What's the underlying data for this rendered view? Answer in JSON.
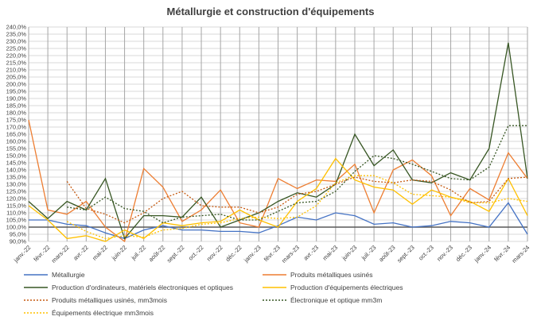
{
  "chart_data": {
    "type": "line",
    "title": "Métallurgie et construction d'équipements",
    "xlabel": "",
    "ylabel": "",
    "ylim": [
      90,
      240
    ],
    "ytick_step": 5,
    "reference_line": 100,
    "grid": true,
    "legend_position": "bottom",
    "categories": [
      "janv.-22",
      "févr.-22",
      "mars-22",
      "avr.-22",
      "mai-22",
      "juin-22",
      "juil.-22",
      "août-22",
      "sept.-22",
      "oct.-22",
      "nov.-22",
      "déc.-22",
      "janv.-23",
      "févr.-23",
      "mars-23",
      "avr.-23",
      "mai-23",
      "juin-23",
      "juil.-23",
      "août-23",
      "sept.-23",
      "oct.-23",
      "nov.-23",
      "déc.-23",
      "janv.-24",
      "févr.-24",
      "mars-24"
    ],
    "series": [
      {
        "name": "Métallurgie",
        "color": "#4472c4",
        "dash": false,
        "values": [
          105,
          105,
          102,
          101,
          96,
          92,
          98,
          101,
          98,
          98,
          97,
          97,
          96,
          101,
          107,
          105,
          110,
          108,
          102,
          103,
          100,
          101,
          104,
          103,
          100,
          117,
          95
        ]
      },
      {
        "name": "Produits métalliques usinés",
        "color": "#ed7d31",
        "dash": false,
        "values": [
          175,
          112,
          109,
          118,
          100,
          90,
          141,
          128,
          104,
          112,
          126,
          103,
          100,
          134,
          127,
          133,
          132,
          144,
          110,
          140,
          147,
          136,
          108,
          127,
          119,
          152,
          134
        ]
      },
      {
        "name": "Production d'ordinateurs, matériels électroniques et optiques",
        "color": "#375623",
        "dash": false,
        "values": [
          118,
          106,
          118,
          112,
          134,
          92,
          108,
          108,
          107,
          121,
          100,
          105,
          110,
          118,
          124,
          121,
          130,
          165,
          143,
          154,
          133,
          131,
          138,
          133,
          155,
          229,
          134
        ]
      },
      {
        "name": "Production d'équipements électriques",
        "color": "#ffc000",
        "dash": false,
        "values": [
          115,
          105,
          92,
          94,
          90,
          98,
          92,
          103,
          101,
          103,
          104,
          112,
          105,
          100,
          118,
          127,
          148,
          133,
          128,
          126,
          116,
          126,
          121,
          118,
          111,
          134,
          108
        ]
      },
      {
        "name": "Produits métalliques usinés, mm3mois",
        "color": "#c55a11",
        "dash": true,
        "values": [
          null,
          null,
          132,
          113,
          109,
          103,
          110,
          120,
          125,
          115,
          114,
          114,
          110,
          114,
          123,
          125,
          130,
          135,
          132,
          131,
          133,
          132,
          126,
          117,
          118,
          134,
          135
        ]
      },
      {
        "name": "Électronique et optique mm3m",
        "color": "#375623",
        "dash": true,
        "values": [
          null,
          null,
          114,
          112,
          121,
          113,
          111,
          103,
          107,
          108,
          109,
          105,
          105,
          111,
          117,
          118,
          125,
          139,
          150,
          148,
          144,
          139,
          134,
          133,
          142,
          171,
          171
        ]
      },
      {
        "name": "Équipements électrique mm3mois",
        "color": "#ffc000",
        "dash": true,
        "values": [
          null,
          null,
          104,
          97,
          92,
          94,
          93,
          98,
          99,
          102,
          103,
          106,
          107,
          106,
          107,
          115,
          131,
          136,
          136,
          131,
          123,
          122,
          121,
          117,
          117,
          120,
          118
        ]
      }
    ]
  }
}
